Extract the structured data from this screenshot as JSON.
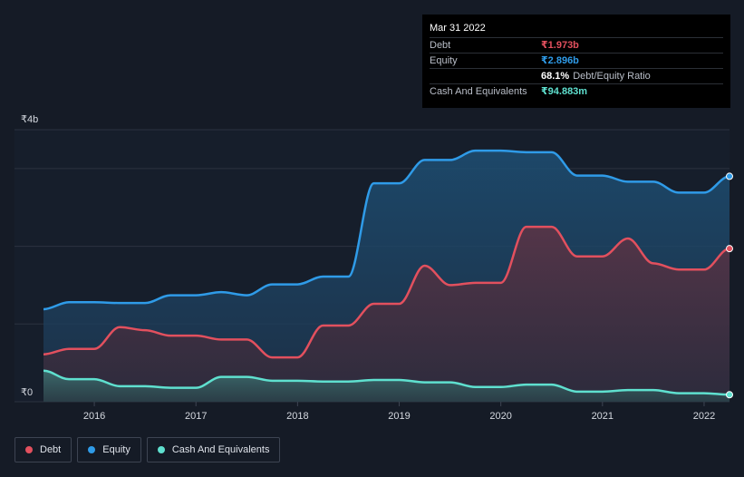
{
  "tooltip": {
    "date": "Mar 31 2022",
    "debt_label": "Debt",
    "debt_value": "₹1.973b",
    "equity_label": "Equity",
    "equity_value": "₹2.896b",
    "ratio_value": "68.1%",
    "ratio_label": "Debt/Equity Ratio",
    "cash_label": "Cash And Equivalents",
    "cash_value": "₹94.883m"
  },
  "legend": {
    "debt": "Debt",
    "equity": "Equity",
    "cash": "Cash And Equivalents"
  },
  "colors": {
    "debt": "#e2505e",
    "equity": "#2f9be8",
    "cash": "#5fe0cf",
    "background": "#151b26"
  },
  "chart_data": {
    "type": "area",
    "title": "",
    "xlabel": "",
    "ylabel": "",
    "ylim": [
      0,
      3.5
    ],
    "y_tick_labels": [
      {
        "value": 3.5,
        "label": "₹4b"
      },
      {
        "value": 0,
        "label": "₹0"
      }
    ],
    "x_ticks": [
      {
        "value": 2016.0,
        "label": "2016"
      },
      {
        "value": 2017.0,
        "label": "2017"
      },
      {
        "value": 2018.0,
        "label": "2018"
      },
      {
        "value": 2019.0,
        "label": "2019"
      },
      {
        "value": 2020.0,
        "label": "2020"
      },
      {
        "value": 2021.0,
        "label": "2021"
      },
      {
        "value": 2022.0,
        "label": "2022"
      }
    ],
    "xlim": [
      2015.5,
      2022.25
    ],
    "series": [
      {
        "name": "Equity",
        "key": "equity",
        "x": [
          2015.5,
          2015.75,
          2016.0,
          2016.25,
          2016.5,
          2016.75,
          2017.0,
          2017.25,
          2017.5,
          2017.75,
          2018.0,
          2018.25,
          2018.5,
          2018.75,
          2019.0,
          2019.25,
          2019.5,
          2019.75,
          2020.0,
          2020.25,
          2020.5,
          2020.75,
          2021.0,
          2021.25,
          2021.5,
          2021.75,
          2022.0,
          2022.25
        ],
        "values": [
          1.19,
          1.28,
          1.28,
          1.27,
          1.27,
          1.37,
          1.37,
          1.41,
          1.37,
          1.51,
          1.51,
          1.61,
          1.61,
          2.81,
          2.81,
          3.11,
          3.11,
          3.23,
          3.23,
          3.21,
          3.21,
          2.91,
          2.91,
          2.83,
          2.83,
          2.69,
          2.69,
          2.9
        ]
      },
      {
        "name": "Debt",
        "key": "debt",
        "x": [
          2015.5,
          2015.75,
          2016.0,
          2016.25,
          2016.5,
          2016.75,
          2017.0,
          2017.25,
          2017.5,
          2017.75,
          2018.0,
          2018.25,
          2018.5,
          2018.75,
          2019.0,
          2019.25,
          2019.5,
          2019.75,
          2020.0,
          2020.25,
          2020.5,
          2020.75,
          2021.0,
          2021.25,
          2021.5,
          2021.75,
          2022.0,
          2022.25
        ],
        "values": [
          0.61,
          0.68,
          0.68,
          0.96,
          0.92,
          0.85,
          0.85,
          0.8,
          0.8,
          0.57,
          0.57,
          0.98,
          0.98,
          1.26,
          1.26,
          1.75,
          1.5,
          1.53,
          1.53,
          2.25,
          2.25,
          1.87,
          1.87,
          2.1,
          1.78,
          1.7,
          1.7,
          1.97
        ]
      },
      {
        "name": "Cash And Equivalents",
        "key": "cash",
        "x": [
          2015.5,
          2015.75,
          2016.0,
          2016.25,
          2016.5,
          2016.75,
          2017.0,
          2017.25,
          2017.5,
          2017.75,
          2018.0,
          2018.25,
          2018.5,
          2018.75,
          2019.0,
          2019.25,
          2019.5,
          2019.75,
          2020.0,
          2020.25,
          2020.5,
          2020.75,
          2021.0,
          2021.25,
          2021.5,
          2021.75,
          2022.0,
          2022.25
        ],
        "values": [
          0.4,
          0.29,
          0.29,
          0.2,
          0.2,
          0.18,
          0.18,
          0.32,
          0.32,
          0.27,
          0.27,
          0.26,
          0.26,
          0.28,
          0.28,
          0.25,
          0.25,
          0.19,
          0.19,
          0.22,
          0.22,
          0.13,
          0.13,
          0.15,
          0.15,
          0.11,
          0.11,
          0.09
        ]
      }
    ]
  }
}
